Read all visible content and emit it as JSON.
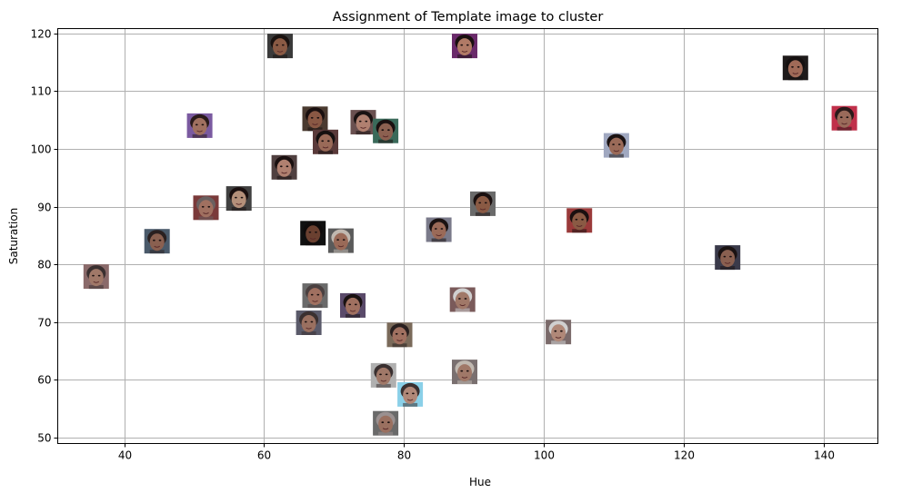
{
  "chart_data": {
    "type": "scatter",
    "title": "Assignment of Template image to cluster",
    "xlabel": "Hue",
    "ylabel": "Saturation",
    "xlim": [
      30.5,
      147.8
    ],
    "ylim": [
      49.0,
      120.8
    ],
    "xticks": [
      40,
      60,
      80,
      100,
      120,
      140
    ],
    "yticks": [
      50,
      60,
      70,
      80,
      90,
      100,
      110,
      120
    ],
    "grid": true,
    "marker": "face-thumbnail",
    "points": [
      {
        "x": 62.3,
        "y": 117.8,
        "skin": "#8a5a44",
        "hair": "#1a1210",
        "bg": "#3a3a3a"
      },
      {
        "x": 88.7,
        "y": 117.8,
        "skin": "#b07a66",
        "hair": "#1a1010",
        "bg": "#6a2a6a"
      },
      {
        "x": 136.0,
        "y": 114.0,
        "skin": "#a06a58",
        "hair": "#151010",
        "bg": "#1e1a1a"
      },
      {
        "x": 143.0,
        "y": 105.3,
        "skin": "#9a6a5a",
        "hair": "#2a1a1a",
        "bg": "#c0304a"
      },
      {
        "x": 67.3,
        "y": 105.2,
        "skin": "#8a5844",
        "hair": "#1a1010",
        "bg": "#4a3a30"
      },
      {
        "x": 74.2,
        "y": 104.6,
        "skin": "#b08070",
        "hair": "#1a1212",
        "bg": "#6a5050"
      },
      {
        "x": 50.8,
        "y": 104.0,
        "skin": "#a07060",
        "hair": "#2a1a1a",
        "bg": "#7a5aa0"
      },
      {
        "x": 77.4,
        "y": 103.1,
        "skin": "#8c6050",
        "hair": "#1a1010",
        "bg": "#3a6a5a"
      },
      {
        "x": 68.8,
        "y": 101.2,
        "skin": "#9a6a58",
        "hair": "#151010",
        "bg": "#5a3a3a"
      },
      {
        "x": 110.4,
        "y": 100.6,
        "skin": "#9a6a58",
        "hair": "#1a1212",
        "bg": "#a0a8c0"
      },
      {
        "x": 62.9,
        "y": 96.8,
        "skin": "#b08070",
        "hair": "#1a1010",
        "bg": "#504040"
      },
      {
        "x": 56.4,
        "y": 91.4,
        "skin": "#b4907a",
        "hair": "#1a1010",
        "bg": "#404040"
      },
      {
        "x": 91.3,
        "y": 90.5,
        "skin": "#8a5a44",
        "hair": "#1a1010",
        "bg": "#6a6a6a"
      },
      {
        "x": 51.7,
        "y": 89.8,
        "skin": "#a07060",
        "hair": "#6a6060",
        "bg": "#7a3a3a"
      },
      {
        "x": 105.1,
        "y": 87.6,
        "skin": "#8a5a44",
        "hair": "#1a1010",
        "bg": "#9a3a3a"
      },
      {
        "x": 85.0,
        "y": 86.0,
        "skin": "#9a6a58",
        "hair": "#1a1212",
        "bg": "#7a7a8a"
      },
      {
        "x": 67.0,
        "y": 85.4,
        "skin": "#6a4030",
        "hair": "#0e0a0a",
        "bg": "#101010"
      },
      {
        "x": 71.0,
        "y": 84.1,
        "skin": "#9a6a58",
        "hair": "#c0b8b0",
        "bg": "#5a5a5a"
      },
      {
        "x": 44.7,
        "y": 84.0,
        "skin": "#8a6050",
        "hair": "#2a2020",
        "bg": "#4a5a6a"
      },
      {
        "x": 126.3,
        "y": 81.2,
        "skin": "#8a6050",
        "hair": "#1a1212",
        "bg": "#3a3a4a"
      },
      {
        "x": 36.0,
        "y": 77.9,
        "skin": "#a07868",
        "hair": "#3a3030",
        "bg": "#8a6a6a"
      },
      {
        "x": 67.3,
        "y": 74.6,
        "skin": "#a07060",
        "hair": "#4a4040",
        "bg": "#6a6a6a"
      },
      {
        "x": 88.4,
        "y": 73.9,
        "skin": "#a07868",
        "hair": "#d0d0d0",
        "bg": "#7a5a5a"
      },
      {
        "x": 72.7,
        "y": 72.9,
        "skin": "#a07060",
        "hair": "#1a1212",
        "bg": "#5a4a6a"
      },
      {
        "x": 66.4,
        "y": 69.9,
        "skin": "#9a7060",
        "hair": "#3a3030",
        "bg": "#5a5a6a"
      },
      {
        "x": 102.1,
        "y": 68.3,
        "skin": "#b08878",
        "hair": "#d0d0d0",
        "bg": "#7a6a6a"
      },
      {
        "x": 79.4,
        "y": 67.8,
        "skin": "#a07060",
        "hair": "#2a2020",
        "bg": "#7a6a5a"
      },
      {
        "x": 77.1,
        "y": 60.8,
        "skin": "#a07868",
        "hair": "#3a3030",
        "bg": "#b0b0b0"
      },
      {
        "x": 88.7,
        "y": 61.4,
        "skin": "#a07868",
        "hair": "#c0b8b0",
        "bg": "#7a7070"
      },
      {
        "x": 80.9,
        "y": 57.5,
        "skin": "#b08878",
        "hair": "#3a3030",
        "bg": "#8ad0e8"
      },
      {
        "x": 77.4,
        "y": 52.5,
        "skin": "#9a7060",
        "hair": "#9a9090",
        "bg": "#6a6a6a"
      }
    ]
  }
}
